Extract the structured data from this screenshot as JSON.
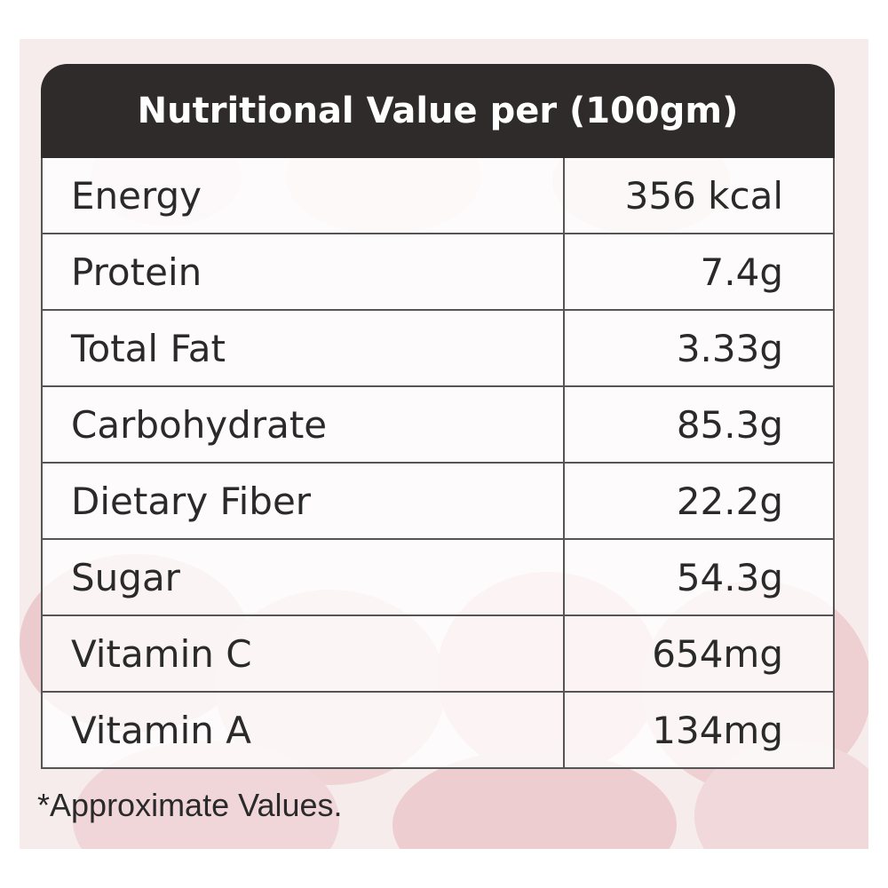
{
  "table": {
    "title": "Nutritional Value per (100gm)",
    "rows": [
      {
        "label": "Energy",
        "value": "356 kcal"
      },
      {
        "label": "Protein",
        "value": "7.4g"
      },
      {
        "label": "Total Fat",
        "value": "3.33g"
      },
      {
        "label": "Carbohydrate",
        "value": "85.3g"
      },
      {
        "label": "Dietary Fiber",
        "value": "22.2g"
      },
      {
        "label": "Sugar",
        "value": "54.3g"
      },
      {
        "label": "Vitamin C",
        "value": "654mg"
      },
      {
        "label": "Vitamin A",
        "value": "134mg"
      }
    ]
  },
  "footnote": "*Approximate Values.",
  "colors": {
    "header_background": "#2f2b2b",
    "header_text": "#ffffff",
    "panel_background": "#f6ecec",
    "border": "#555555",
    "text": "#2a2a2a"
  }
}
